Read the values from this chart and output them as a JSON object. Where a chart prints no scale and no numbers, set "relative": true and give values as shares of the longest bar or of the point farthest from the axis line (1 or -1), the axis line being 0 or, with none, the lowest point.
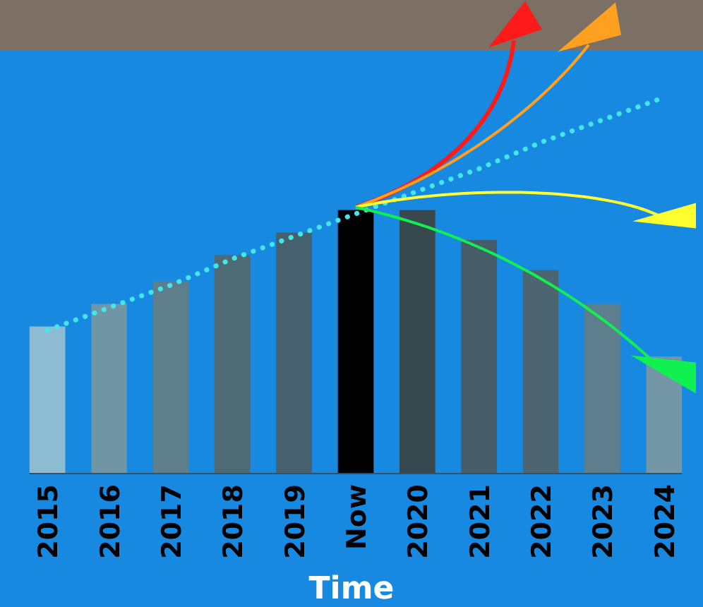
{
  "chart_data": {
    "type": "bar",
    "relative": true,
    "xlabel": "Time",
    "categories": [
      "2015",
      "2016",
      "2017",
      "2018",
      "2019",
      "Now",
      "2020",
      "2021",
      "2022",
      "2023",
      "2024"
    ],
    "series": [
      {
        "type": "bar",
        "values": [
          0.39,
          0.45,
          0.51,
          0.58,
          0.64,
          0.7,
          0.7,
          0.62,
          0.54,
          0.45,
          0.31
        ],
        "colors": [
          "#8dbbd2",
          "#7096a5",
          "#5f7e8c",
          "#4e6a75",
          "#46606d",
          "#000000",
          "#37494f",
          "#465c69",
          "#4d6570",
          "#5c7e8d",
          "#7397a6"
        ]
      },
      {
        "type": "line",
        "values": [
          0.38,
          0.44,
          0.5,
          0.57,
          0.63,
          0.69,
          0.75,
          0.81,
          0.88,
          0.94,
          1
        ],
        "color": "#40e8ec",
        "line_style": "dotted"
      }
    ]
  }
}
